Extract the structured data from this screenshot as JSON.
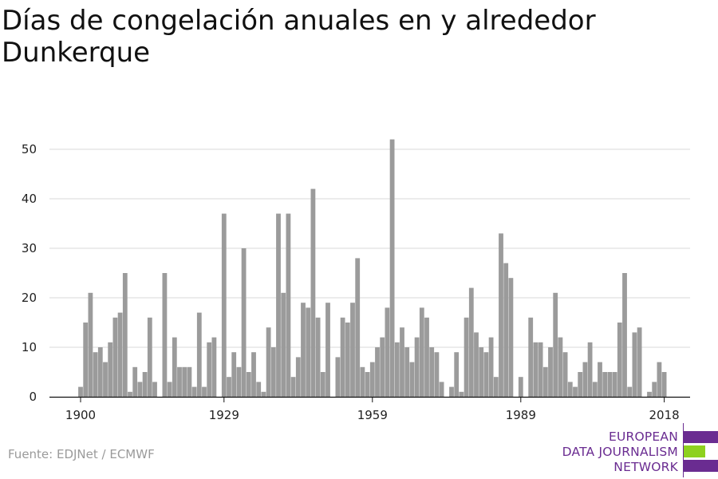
{
  "header": {
    "title": "Días de congelación anuales en y alrededor Dunkerque"
  },
  "footer": {
    "source": "Fuente: EDJNet / ECMWF"
  },
  "logo": {
    "line1": "EUROPEAN",
    "line2": "DATA JOURNALISM",
    "line3": "NETWORK",
    "colors": {
      "purple": "#6a2c91",
      "green": "#8ed11f"
    }
  },
  "chart_data": {
    "type": "bar",
    "title": "Días de congelación anuales en y alrededor Dunkerque",
    "xlabel": "",
    "ylabel": "",
    "ylim": [
      0,
      55
    ],
    "yticks": [
      0,
      10,
      20,
      30,
      40,
      50
    ],
    "xticks": [
      1900,
      1929,
      1959,
      1989,
      2018
    ],
    "grid": true,
    "bar_color": "#9b9b9b",
    "categories": [
      1900,
      1901,
      1902,
      1903,
      1904,
      1905,
      1906,
      1907,
      1908,
      1909,
      1910,
      1911,
      1912,
      1913,
      1914,
      1915,
      1916,
      1917,
      1918,
      1919,
      1920,
      1921,
      1922,
      1923,
      1924,
      1925,
      1926,
      1927,
      1928,
      1929,
      1930,
      1931,
      1932,
      1933,
      1934,
      1935,
      1936,
      1937,
      1938,
      1939,
      1940,
      1941,
      1942,
      1943,
      1944,
      1945,
      1946,
      1947,
      1948,
      1949,
      1950,
      1951,
      1952,
      1953,
      1954,
      1955,
      1956,
      1957,
      1958,
      1959,
      1960,
      1961,
      1962,
      1963,
      1964,
      1965,
      1966,
      1967,
      1968,
      1969,
      1970,
      1971,
      1972,
      1973,
      1974,
      1975,
      1976,
      1977,
      1978,
      1979,
      1980,
      1981,
      1982,
      1983,
      1984,
      1985,
      1986,
      1987,
      1988,
      1989,
      1990,
      1991,
      1992,
      1993,
      1994,
      1995,
      1996,
      1997,
      1998,
      1999,
      2000,
      2001,
      2002,
      2003,
      2004,
      2005,
      2006,
      2007,
      2008,
      2009,
      2010,
      2011,
      2012,
      2013,
      2014,
      2015,
      2016,
      2017,
      2018,
      2019
    ],
    "values": [
      2,
      15,
      21,
      9,
      10,
      7,
      11,
      16,
      17,
      25,
      1,
      6,
      3,
      5,
      16,
      3,
      0,
      25,
      3,
      12,
      6,
      6,
      6,
      2,
      17,
      2,
      11,
      12,
      0,
      37,
      4,
      9,
      6,
      30,
      5,
      9,
      3,
      1,
      14,
      10,
      37,
      21,
      37,
      4,
      8,
      19,
      18,
      42,
      16,
      5,
      19,
      0,
      8,
      16,
      15,
      19,
      28,
      6,
      5,
      7,
      10,
      12,
      18,
      52,
      11,
      14,
      10,
      7,
      12,
      18,
      16,
      10,
      9,
      3,
      0,
      2,
      9,
      1,
      16,
      22,
      13,
      10,
      9,
      12,
      4,
      33,
      27,
      24,
      0,
      4,
      0,
      16,
      11,
      11,
      6,
      10,
      21,
      12,
      9,
      3,
      2,
      5,
      7,
      11,
      3,
      7,
      5,
      5,
      5,
      15,
      25,
      2,
      13,
      14,
      0,
      1,
      3,
      7,
      5,
      0
    ]
  }
}
